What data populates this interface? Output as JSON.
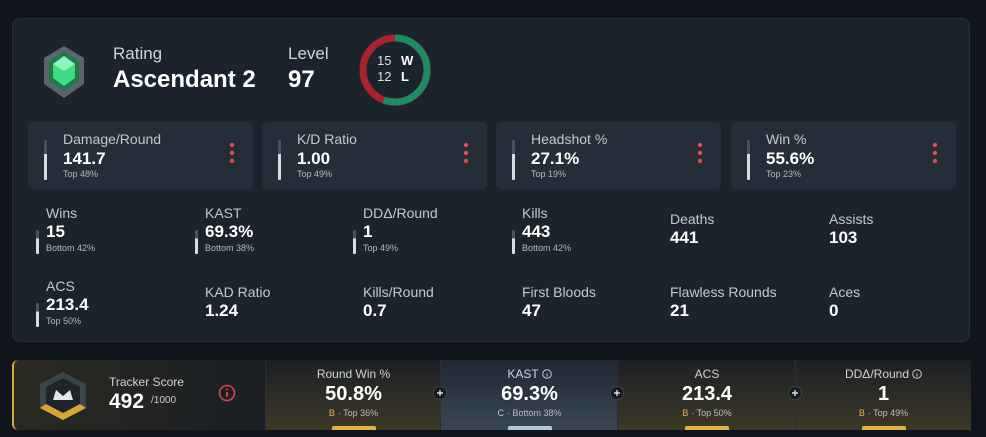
{
  "profile": {
    "rating_label": "Rating",
    "rating": "Ascendant 2",
    "level_label": "Level",
    "level": "97"
  },
  "record": {
    "wins": 15,
    "wins_label": "W",
    "losses": 12,
    "losses_label": "L"
  },
  "highlights": [
    {
      "label": "Damage/Round",
      "value": "141.7",
      "sub": "Top 48%"
    },
    {
      "label": "K/D Ratio",
      "value": "1.00",
      "sub": "Top 49%"
    },
    {
      "label": "Headshot %",
      "value": "27.1%",
      "sub": "Top 19%"
    },
    {
      "label": "Win %",
      "value": "55.6%",
      "sub": "Top 23%"
    }
  ],
  "stats": [
    {
      "label": "Wins",
      "value": "15",
      "sub": "Bottom 42%"
    },
    {
      "label": "KAST",
      "value": "69.3%",
      "sub": "Bottom 38%"
    },
    {
      "label": "DDΔ/Round",
      "value": "1",
      "sub": "Top 49%"
    },
    {
      "label": "Kills",
      "value": "443",
      "sub": "Bottom 42%"
    },
    {
      "label": "Deaths",
      "value": "441"
    },
    {
      "label": "Assists",
      "value": "103"
    },
    {
      "label": "ACS",
      "value": "213.4",
      "sub": "Top 50%"
    },
    {
      "label": "KAD Ratio",
      "value": "1.24"
    },
    {
      "label": "Kills/Round",
      "value": "0.7"
    },
    {
      "label": "First Bloods",
      "value": "47"
    },
    {
      "label": "Flawless Rounds",
      "value": "21"
    },
    {
      "label": "Aces",
      "value": "0"
    }
  ],
  "tracker": {
    "label": "Tracker Score",
    "score": "492",
    "max": "/1000",
    "segments": [
      {
        "label": "Round Win %",
        "value": "50.8%",
        "grade": "B",
        "detail": "· Top 36%"
      },
      {
        "label": "KAST",
        "value": "69.3%",
        "grade": "C",
        "detail": "· Bottom 38%",
        "info": true
      },
      {
        "label": "ACS",
        "value": "213.4",
        "grade": "B",
        "detail": "· Top 50%"
      },
      {
        "label": "DDΔ/Round",
        "value": "1",
        "grade": "B",
        "detail": "· Top 49%",
        "info": true
      }
    ]
  }
}
